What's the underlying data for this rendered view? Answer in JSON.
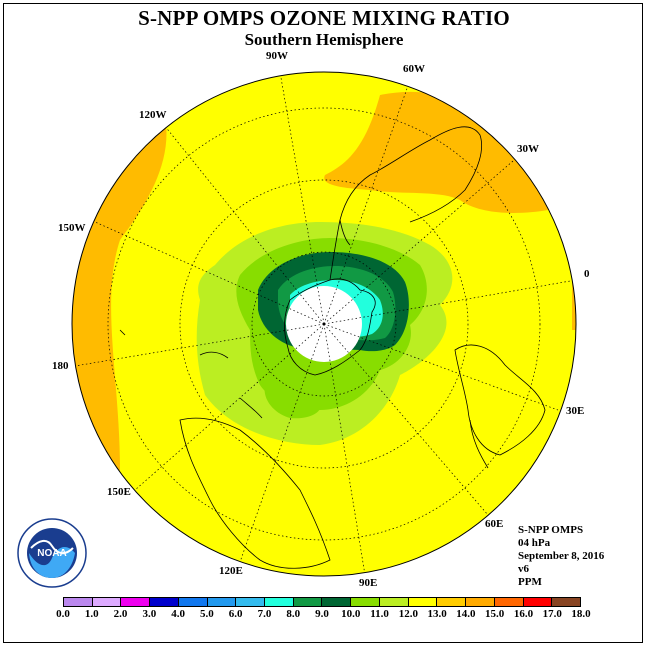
{
  "title": "S-NPP OMPS OZONE MIXING RATIO",
  "subtitle": "Southern Hemisphere",
  "longitude_labels": {
    "w90": "90W",
    "w60": "60W",
    "w30": "30W",
    "w120": "120W",
    "w150": "150W",
    "e0": "0",
    "e180": "180",
    "e30": "30E",
    "e60": "60E",
    "e90": "90E",
    "e120": "120E",
    "e150": "150E"
  },
  "info": {
    "instrument": "S-NPP OMPS",
    "level": "04 hPa",
    "date": "September 8, 2016",
    "version": "v6",
    "units": "PPM"
  },
  "logo_text": "NOAA",
  "colorbar": {
    "ticks": [
      "0.0",
      "1.0",
      "2.0",
      "3.0",
      "4.0",
      "5.0",
      "6.0",
      "7.0",
      "8.0",
      "9.0",
      "10.0",
      "11.0",
      "12.0",
      "13.0",
      "14.0",
      "15.0",
      "16.0",
      "17.0",
      "18.0"
    ],
    "colors": [
      "#bb88ee",
      "#ddaaff",
      "#ee00ee",
      "#0000cc",
      "#1177ee",
      "#2299ee",
      "#33bbee",
      "#22ffdd",
      "#119944",
      "#006633",
      "#88dd00",
      "#bbee22",
      "#ffff00",
      "#ffcc00",
      "#ffaa00",
      "#ff6600",
      "#ff0000",
      "#884422"
    ]
  },
  "map_colors": {
    "background_field": "#ffff00",
    "field_13_14": "#ffbb00",
    "field_11_12": "#bbee22",
    "field_10_11": "#88dd00",
    "field_9_10": "#006633",
    "field_8_9": "#119944",
    "field_7_8": "#22ffdd",
    "polar_night": "#ffffff"
  }
}
